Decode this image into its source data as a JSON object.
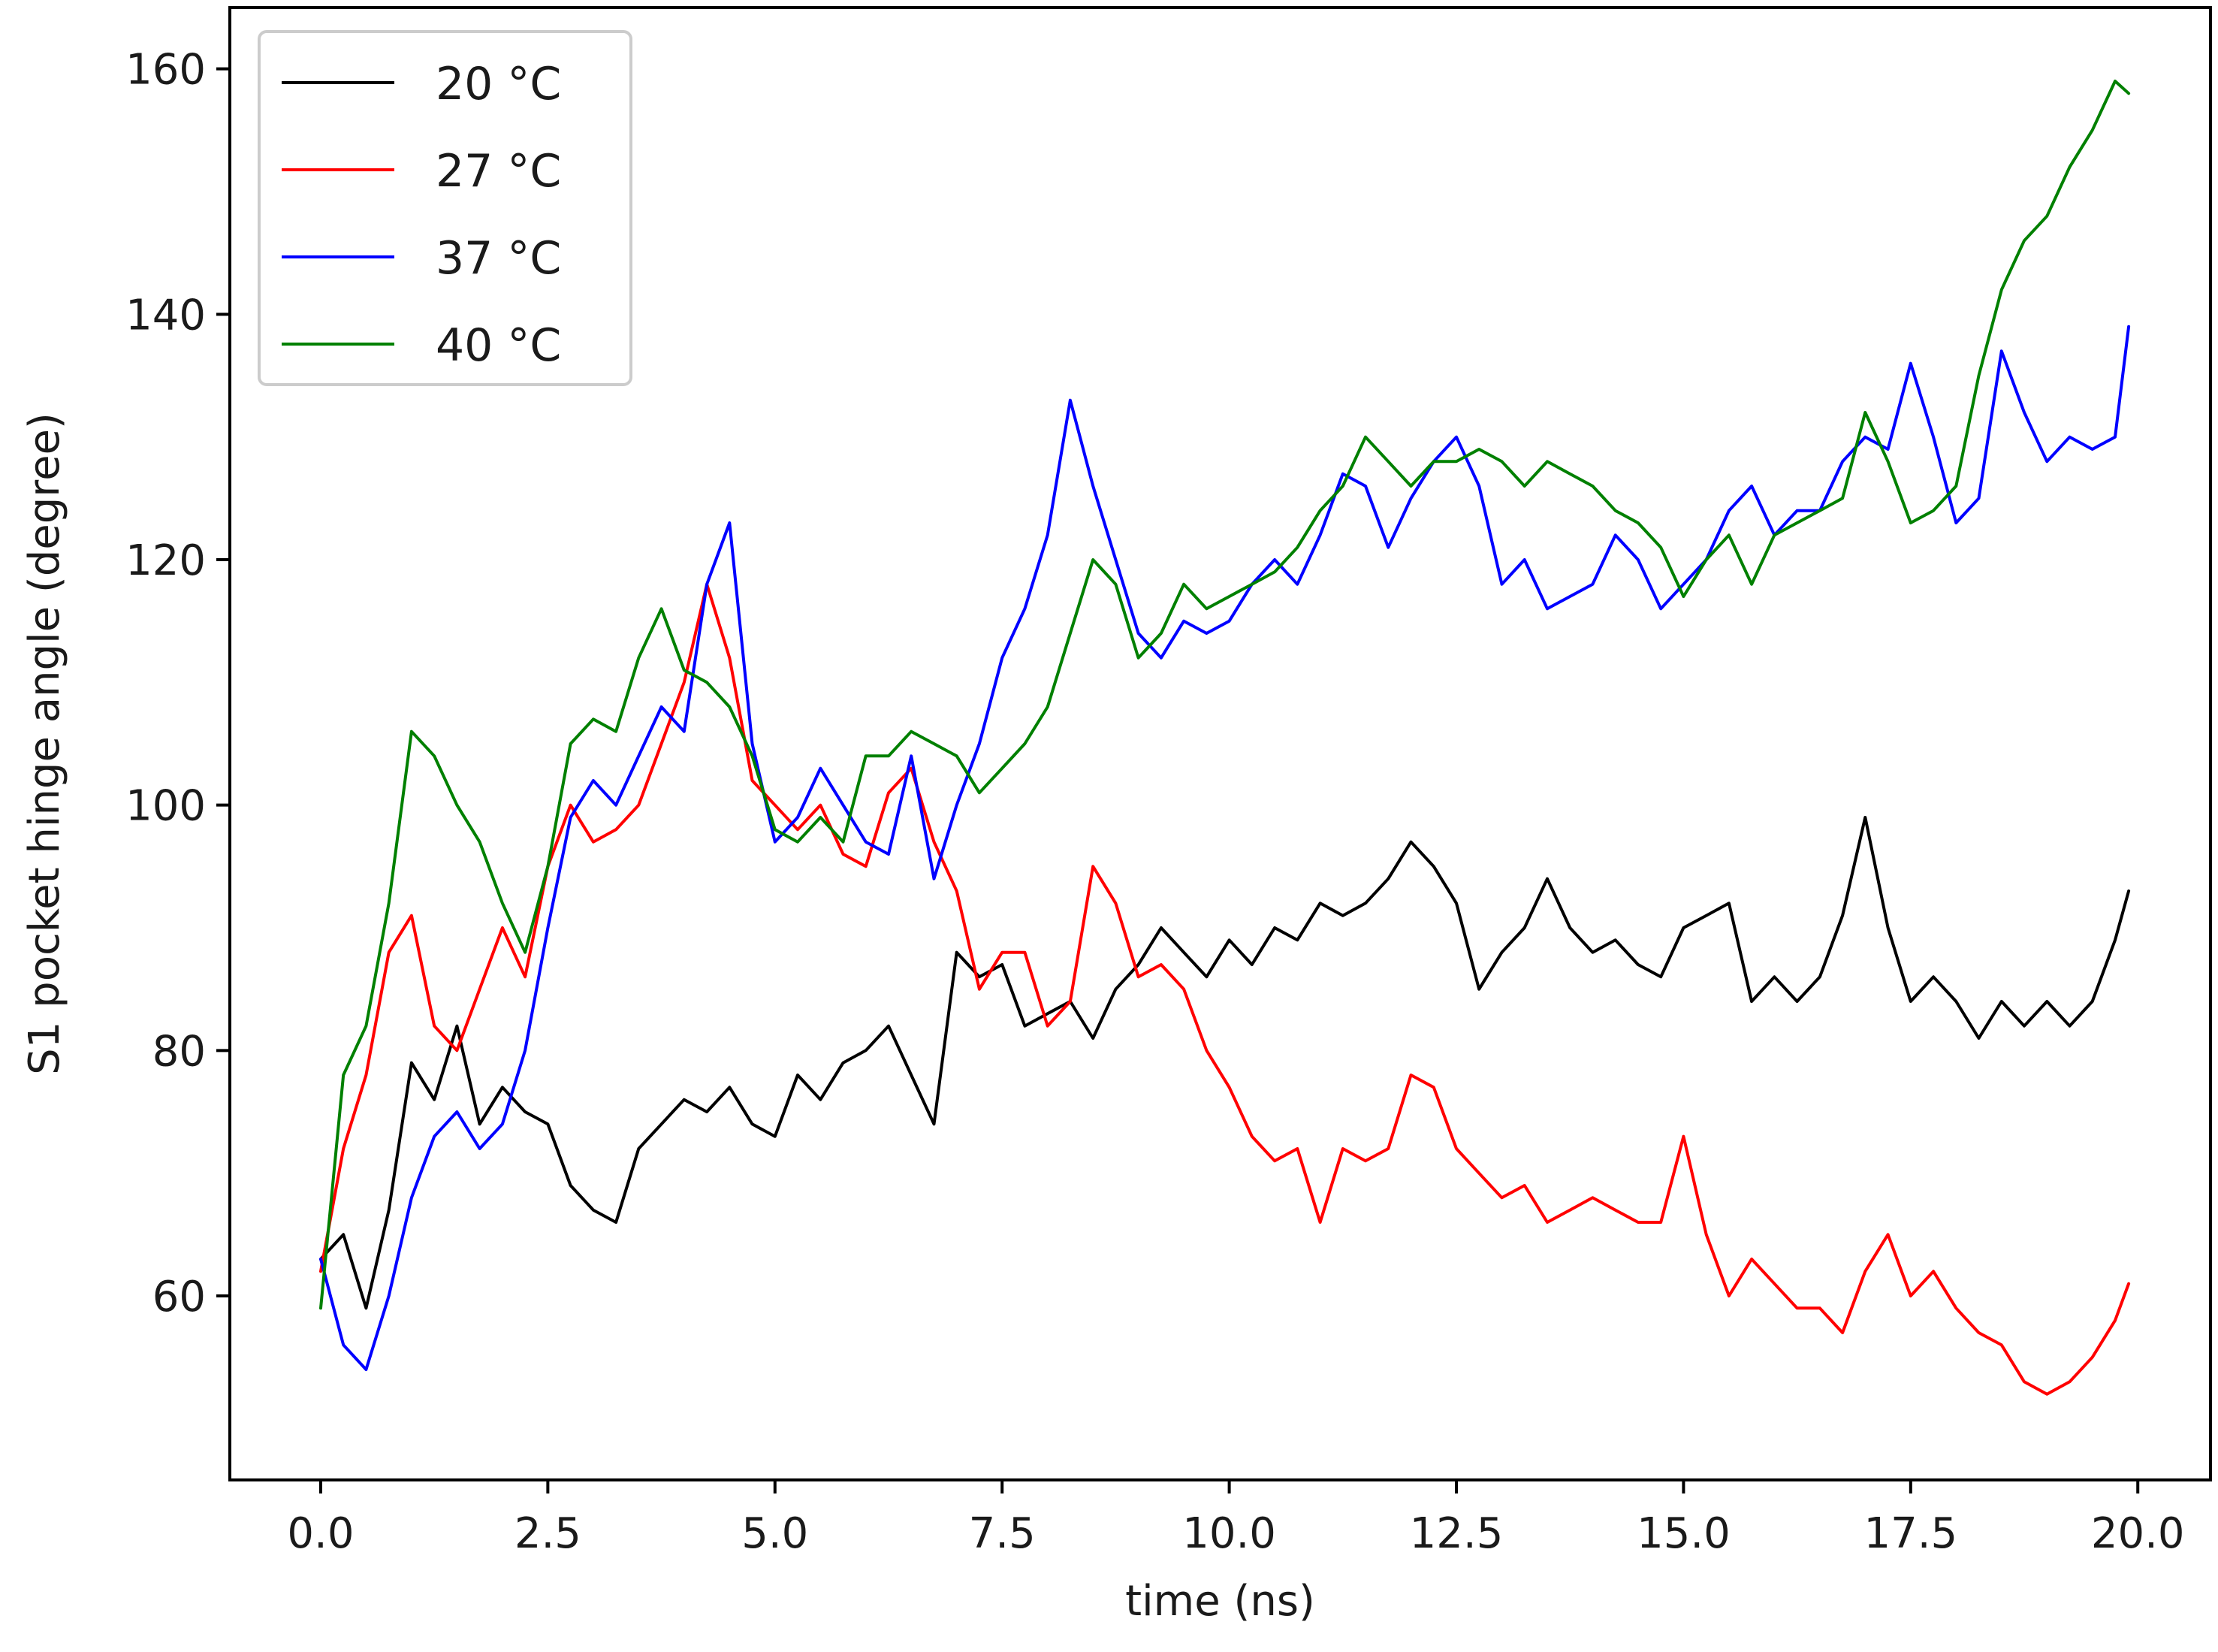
{
  "chart_data": {
    "type": "line",
    "title": "",
    "xlabel": "time (ns)",
    "ylabel": "S1 pocket hinge angle (degree)",
    "xlim": [
      -1.0,
      20.8
    ],
    "ylim": [
      45,
      165
    ],
    "xticks": [
      0.0,
      2.5,
      5.0,
      7.5,
      10.0,
      12.5,
      15.0,
      17.5,
      20.0
    ],
    "xtick_labels": [
      "0.0",
      "2.5",
      "5.0",
      "7.5",
      "10.0",
      "12.5",
      "15.0",
      "17.5",
      "20.0"
    ],
    "yticks": [
      60,
      80,
      100,
      120,
      140,
      160
    ],
    "ytick_labels": [
      "60",
      "80",
      "100",
      "120",
      "140",
      "160"
    ],
    "grid": false,
    "legend_position": "top-left",
    "series": [
      {
        "name": "20  °C",
        "color": "#000000",
        "x": [
          0,
          0.25,
          0.5,
          0.75,
          1.0,
          1.25,
          1.5,
          1.75,
          2.0,
          2.25,
          2.5,
          2.75,
          3.0,
          3.25,
          3.5,
          3.75,
          4.0,
          4.25,
          4.5,
          4.75,
          5.0,
          5.25,
          5.5,
          5.75,
          6.0,
          6.25,
          6.5,
          6.75,
          7.0,
          7.25,
          7.5,
          7.75,
          8.0,
          8.25,
          8.5,
          8.75,
          9.0,
          9.25,
          9.5,
          9.75,
          10.0,
          10.25,
          10.5,
          10.75,
          11.0,
          11.25,
          11.5,
          11.75,
          12.0,
          12.25,
          12.5,
          12.75,
          13.0,
          13.25,
          13.5,
          13.75,
          14.0,
          14.25,
          14.5,
          14.75,
          15.0,
          15.25,
          15.5,
          15.75,
          16.0,
          16.25,
          16.5,
          16.75,
          17.0,
          17.25,
          17.5,
          17.75,
          18.0,
          18.25,
          18.5,
          18.75,
          19.0,
          19.25,
          19.5,
          19.75,
          19.9
        ],
        "y": [
          63,
          65,
          59,
          67,
          79,
          76,
          82,
          74,
          77,
          75,
          74,
          69,
          67,
          66,
          72,
          74,
          76,
          75,
          77,
          74,
          73,
          78,
          76,
          79,
          80,
          82,
          78,
          74,
          88,
          86,
          87,
          82,
          83,
          84,
          81,
          85,
          87,
          90,
          88,
          86,
          89,
          87,
          90,
          89,
          92,
          91,
          92,
          94,
          97,
          95,
          92,
          85,
          88,
          90,
          94,
          90,
          88,
          89,
          87,
          86,
          90,
          91,
          92,
          84,
          86,
          84,
          86,
          91,
          99,
          90,
          84,
          86,
          84,
          81,
          84,
          82,
          84,
          82,
          84,
          89,
          93
        ]
      },
      {
        "name": "27  °C",
        "color": "#ff0000",
        "x": [
          0,
          0.25,
          0.5,
          0.75,
          1.0,
          1.25,
          1.5,
          1.75,
          2.0,
          2.25,
          2.5,
          2.75,
          3.0,
          3.25,
          3.5,
          3.75,
          4.0,
          4.25,
          4.5,
          4.75,
          5.0,
          5.25,
          5.5,
          5.75,
          6.0,
          6.25,
          6.5,
          6.75,
          7.0,
          7.25,
          7.5,
          7.75,
          8.0,
          8.25,
          8.5,
          8.75,
          9.0,
          9.25,
          9.5,
          9.75,
          10.0,
          10.25,
          10.5,
          10.75,
          11.0,
          11.25,
          11.5,
          11.75,
          12.0,
          12.25,
          12.5,
          12.75,
          13.0,
          13.25,
          13.5,
          13.75,
          14.0,
          14.25,
          14.5,
          14.75,
          15.0,
          15.25,
          15.5,
          15.75,
          16.0,
          16.25,
          16.5,
          16.75,
          17.0,
          17.25,
          17.5,
          17.75,
          18.0,
          18.25,
          18.5,
          18.75,
          19.0,
          19.25,
          19.5,
          19.75,
          19.9
        ],
        "y": [
          62,
          72,
          78,
          88,
          91,
          82,
          80,
          85,
          90,
          86,
          95,
          100,
          97,
          98,
          100,
          105,
          110,
          118,
          112,
          102,
          100,
          98,
          100,
          96,
          95,
          101,
          103,
          97,
          93,
          85,
          88,
          88,
          82,
          84,
          95,
          92,
          86,
          87,
          85,
          80,
          77,
          73,
          71,
          72,
          66,
          72,
          71,
          72,
          78,
          77,
          72,
          70,
          68,
          69,
          66,
          67,
          68,
          67,
          66,
          66,
          73,
          65,
          60,
          63,
          61,
          59,
          59,
          57,
          62,
          65,
          60,
          62,
          59,
          57,
          56,
          53,
          52,
          53,
          55,
          58,
          61
        ]
      },
      {
        "name": "37  °C",
        "color": "#0000ff",
        "x": [
          0,
          0.25,
          0.5,
          0.75,
          1.0,
          1.25,
          1.5,
          1.75,
          2.0,
          2.25,
          2.5,
          2.75,
          3.0,
          3.25,
          3.5,
          3.75,
          4.0,
          4.25,
          4.5,
          4.75,
          5.0,
          5.25,
          5.5,
          5.75,
          6.0,
          6.25,
          6.5,
          6.75,
          7.0,
          7.25,
          7.5,
          7.75,
          8.0,
          8.25,
          8.5,
          8.75,
          9.0,
          9.25,
          9.5,
          9.75,
          10.0,
          10.25,
          10.5,
          10.75,
          11.0,
          11.25,
          11.5,
          11.75,
          12.0,
          12.25,
          12.5,
          12.75,
          13.0,
          13.25,
          13.5,
          13.75,
          14.0,
          14.25,
          14.5,
          14.75,
          15.0,
          15.25,
          15.5,
          15.75,
          16.0,
          16.25,
          16.5,
          16.75,
          17.0,
          17.25,
          17.5,
          17.75,
          18.0,
          18.25,
          18.5,
          18.75,
          19.0,
          19.25,
          19.5,
          19.75,
          19.9
        ],
        "y": [
          63,
          56,
          54,
          60,
          68,
          73,
          75,
          72,
          74,
          80,
          90,
          99,
          102,
          100,
          104,
          108,
          106,
          118,
          123,
          105,
          97,
          99,
          103,
          100,
          97,
          96,
          104,
          94,
          100,
          105,
          112,
          116,
          122,
          133,
          126,
          120,
          114,
          112,
          115,
          114,
          115,
          118,
          120,
          118,
          122,
          127,
          126,
          121,
          125,
          128,
          130,
          126,
          118,
          120,
          116,
          117,
          118,
          122,
          120,
          116,
          118,
          120,
          124,
          126,
          122,
          124,
          124,
          128,
          130,
          129,
          136,
          130,
          123,
          125,
          137,
          132,
          128,
          130,
          129,
          130,
          139
        ]
      },
      {
        "name": "40  °C",
        "color": "#008000",
        "x": [
          0,
          0.25,
          0.5,
          0.75,
          1.0,
          1.25,
          1.5,
          1.75,
          2.0,
          2.25,
          2.5,
          2.75,
          3.0,
          3.25,
          3.5,
          3.75,
          4.0,
          4.25,
          4.5,
          4.75,
          5.0,
          5.25,
          5.5,
          5.75,
          6.0,
          6.25,
          6.5,
          6.75,
          7.0,
          7.25,
          7.5,
          7.75,
          8.0,
          8.25,
          8.5,
          8.75,
          9.0,
          9.25,
          9.5,
          9.75,
          10.0,
          10.25,
          10.5,
          10.75,
          11.0,
          11.25,
          11.5,
          11.75,
          12.0,
          12.25,
          12.5,
          12.75,
          13.0,
          13.25,
          13.5,
          13.75,
          14.0,
          14.25,
          14.5,
          14.75,
          15.0,
          15.25,
          15.5,
          15.75,
          16.0,
          16.25,
          16.5,
          16.75,
          17.0,
          17.25,
          17.5,
          17.75,
          18.0,
          18.25,
          18.5,
          18.75,
          19.0,
          19.25,
          19.5,
          19.75,
          19.9
        ],
        "y": [
          59,
          78,
          82,
          92,
          106,
          104,
          100,
          97,
          92,
          88,
          95,
          105,
          107,
          106,
          112,
          116,
          111,
          110,
          108,
          104,
          98,
          97,
          99,
          97,
          104,
          104,
          106,
          105,
          104,
          101,
          103,
          105,
          108,
          114,
          120,
          118,
          112,
          114,
          118,
          116,
          117,
          118,
          119,
          121,
          124,
          126,
          130,
          128,
          126,
          128,
          128,
          129,
          128,
          126,
          128,
          127,
          126,
          124,
          123,
          121,
          117,
          120,
          122,
          118,
          122,
          123,
          124,
          125,
          132,
          128,
          123,
          124,
          126,
          135,
          142,
          146,
          148,
          152,
          155,
          159,
          158
        ]
      }
    ]
  }
}
